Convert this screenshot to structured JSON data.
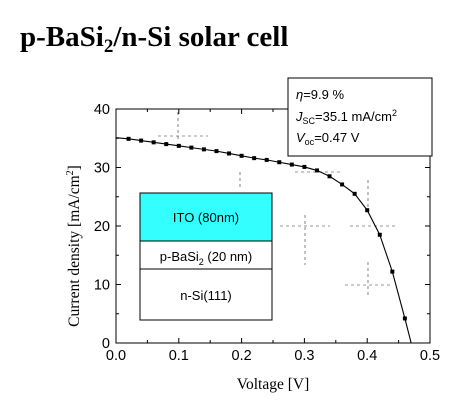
{
  "title": {
    "main": "p-BaSi",
    "sub": "2",
    "rest": "/n-Si solar cell"
  },
  "chart_data": {
    "type": "line",
    "x": [
      0.0,
      0.02,
      0.04,
      0.06,
      0.08,
      0.1,
      0.12,
      0.14,
      0.16,
      0.18,
      0.2,
      0.22,
      0.24,
      0.26,
      0.28,
      0.3,
      0.32,
      0.34,
      0.36,
      0.38,
      0.4,
      0.42,
      0.44,
      0.46,
      0.47
    ],
    "series": [
      {
        "values": [
          35.1,
          34.9,
          34.6,
          34.3,
          34.0,
          33.7,
          33.4,
          33.1,
          32.8,
          32.4,
          32.0,
          31.6,
          31.3,
          30.9,
          30.5,
          30.1,
          29.5,
          28.5,
          27.1,
          25.5,
          22.7,
          18.5,
          12.2,
          4.2,
          0.0
        ]
      }
    ],
    "xlabel": "Voltage [V]",
    "ylabel": {
      "main": "Current density [mA/cm",
      "sup": "2",
      "end": "]"
    },
    "xlim": [
      0.0,
      0.5
    ],
    "ylim": [
      0,
      40
    ],
    "x_ticks": [
      "0.0",
      "0.1",
      "0.2",
      "0.3",
      "0.4",
      "0.5"
    ],
    "y_ticks": [
      "0",
      "10",
      "20",
      "30",
      "40"
    ],
    "grid": false,
    "annotations": {
      "eta": {
        "sym": "η",
        "val": "=9.9 %"
      },
      "jsc": {
        "sym": "J",
        "sub": "SC",
        "val": "=35.1 mA/cm",
        "sup": "2"
      },
      "voc": {
        "sym": "V",
        "sub": "oc",
        "val": "=0.47 V"
      }
    },
    "layers": [
      {
        "label": "ITO (80nm)",
        "color": "#33ffff"
      },
      {
        "label_main": "p-BaSi",
        "label_sub": "2",
        "label_end": " (20 nm)",
        "color": "#ffffff"
      },
      {
        "label": "n-Si(111)",
        "color": "#ffffff"
      }
    ]
  }
}
